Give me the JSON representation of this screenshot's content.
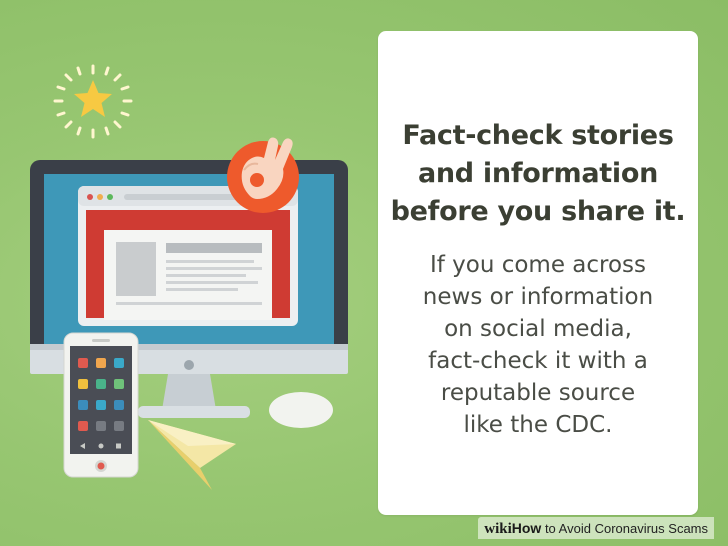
{
  "card": {
    "title": "Fact-check stories\nand information\nbefore you share it.",
    "body": "If you come across\nnews or information\non social media,\nfact-check it with a\nreputable source\nlike the CDC."
  },
  "watermark": {
    "brand": "wiki",
    "how": "How",
    "title": " to Avoid Coronavirus Scams"
  },
  "illustration": {
    "icons": [
      "star-icon",
      "ok-hand-icon",
      "paper-plane-icon",
      "mouse-icon"
    ]
  },
  "colors": {
    "background": "#93c26e",
    "card": "#ffffff",
    "monitor_frame": "#3a3f48",
    "monitor_screen": "#3e98b8",
    "browser_red": "#cf3b33",
    "badge_orange": "#ee5a2c",
    "star_yellow": "#f7c942"
  }
}
